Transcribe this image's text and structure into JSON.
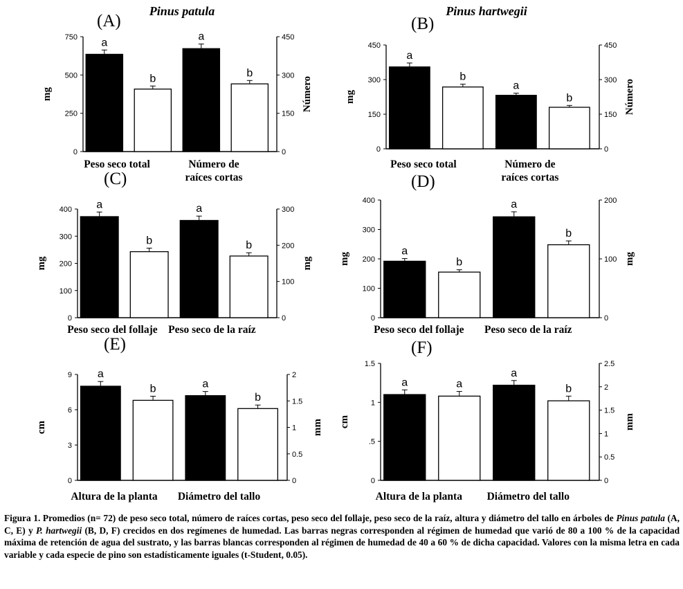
{
  "species_titles": [
    "Pinus patula",
    "Pinus hartwegii"
  ],
  "chart_data": [
    {
      "panel": "(A)",
      "type": "bar",
      "categories": [
        "Peso seco total",
        "Número de raíces cortas"
      ],
      "series": [
        {
          "name": "80 a 100 %",
          "values": [
            635,
            672
          ],
          "errors": [
            28,
            30
          ],
          "letters": [
            "a",
            "a"
          ]
        },
        {
          "name": "40 a 60 %",
          "values": [
            408,
            442
          ],
          "errors": [
            20,
            22
          ],
          "letters": [
            "b",
            "b"
          ]
        }
      ],
      "ylabel_left": "mg",
      "yticks_left": [
        "0",
        "250",
        "500",
        "750"
      ],
      "ylim_left": [
        0,
        750
      ],
      "ylabel_right": "Número",
      "yticks_right": [
        "0",
        "150",
        "300",
        "450"
      ],
      "ylim_right": [
        0,
        450
      ]
    },
    {
      "panel": "(B)",
      "type": "bar",
      "categories": [
        "Peso seco total",
        "Número de raíces cortas"
      ],
      "series": [
        {
          "name": "80 a 100 %",
          "values": [
            355,
            232
          ],
          "errors": [
            17,
            9
          ],
          "letters": [
            "a",
            "a"
          ]
        },
        {
          "name": "40 a 60 %",
          "values": [
            268,
            180
          ],
          "errors": [
            12,
            8
          ],
          "letters": [
            "b",
            "b"
          ]
        }
      ],
      "ylabel_left": "mg",
      "yticks_left": [
        "0",
        "150",
        "300",
        "450"
      ],
      "ylim_left": [
        0,
        450
      ],
      "ylabel_right": "Número",
      "yticks_right": [
        "0",
        "150",
        "300",
        "450"
      ],
      "ylim_right": [
        0,
        450
      ]
    },
    {
      "panel": "(C)",
      "type": "bar",
      "categories": [
        "Peso seco del follaje",
        "Peso seco de la raíz"
      ],
      "series": [
        {
          "name": "80 a 100 %",
          "values": [
            372,
            358
          ],
          "errors": [
            17,
            16
          ],
          "letters": [
            "a",
            "a"
          ]
        },
        {
          "name": "40 a 60 %",
          "values": [
            243,
            227
          ],
          "errors": [
            13,
            12
          ],
          "letters": [
            "b",
            "b"
          ]
        }
      ],
      "ylabel_left": "mg",
      "yticks_left": [
        "0",
        "100",
        "200",
        "300",
        "400"
      ],
      "ylim_left": [
        0,
        400
      ],
      "ylabel_right": "mg",
      "yticks_right": [
        "0",
        "100",
        "200",
        "300"
      ],
      "ylim_right": [
        0,
        300
      ]
    },
    {
      "panel": "(D)",
      "type": "bar",
      "categories": [
        "Peso seco del follaje",
        "Peso seco de la raíz"
      ],
      "series": [
        {
          "name": "80 a 100 %",
          "values": [
            192,
            343
          ],
          "errors": [
            9,
            17
          ],
          "letters": [
            "a",
            "a"
          ]
        },
        {
          "name": "40 a 60 %",
          "values": [
            155,
            248
          ],
          "errors": [
            8,
            13
          ],
          "letters": [
            "b",
            "b"
          ]
        }
      ],
      "ylabel_left": "mg",
      "yticks_left": [
        "0",
        "100",
        "200",
        "300",
        "400"
      ],
      "ylim_left": [
        0,
        400
      ],
      "ylabel_right": "mg",
      "yticks_right": [
        "0",
        "100",
        "200"
      ],
      "ylim_right": [
        0,
        200
      ]
    },
    {
      "panel": "(E)",
      "type": "bar",
      "categories": [
        "Altura de la planta",
        "Diámetro del tallo"
      ],
      "series": [
        {
          "name": "80 a 100 %",
          "values": [
            8.0,
            7.2
          ],
          "errors": [
            0.4,
            0.35
          ],
          "letters": [
            "a",
            "a"
          ]
        },
        {
          "name": "40 a 60 %",
          "values": [
            6.8,
            6.1
          ],
          "errors": [
            0.35,
            0.3
          ],
          "letters": [
            "b",
            "b"
          ]
        }
      ],
      "ylabel_left": "cm",
      "yticks_left": [
        "0",
        "3",
        "6",
        "9"
      ],
      "ylim_left": [
        0,
        9
      ],
      "ylabel_right": "mm",
      "yticks_right": [
        "0",
        "0.5",
        "1",
        "1.5",
        "2"
      ],
      "ylim_right": [
        0,
        2
      ]
    },
    {
      "panel": "(F)",
      "type": "bar",
      "categories": [
        "Altura de la planta",
        "Diámetro del tallo"
      ],
      "series": [
        {
          "name": "80 a 100 %",
          "values": [
            1.1,
            1.22
          ],
          "errors": [
            0.06,
            0.06
          ],
          "letters": [
            "a",
            "a"
          ]
        },
        {
          "name": "40 a 60 %",
          "values": [
            1.08,
            1.02
          ],
          "errors": [
            0.06,
            0.06
          ],
          "letters": [
            "a",
            "b"
          ]
        }
      ],
      "ylabel_left": "cm",
      "yticks_left": [
        "0",
        ".5",
        "1",
        "1.5"
      ],
      "ylim_left": [
        0,
        1.5
      ],
      "ylabel_right": "mm",
      "yticks_right": [
        "0",
        "0.5",
        "1",
        "1.5",
        "2",
        "2.5"
      ],
      "ylim_right": [
        0,
        2.5
      ]
    }
  ],
  "caption": {
    "p1": "Figura 1. Promedios (n= 72) de peso seco total, número de raíces cortas, peso seco del follaje, peso seco de la raíz, altura y diámetro del tallo en árboles de ",
    "sp1": "Pinus patula",
    "p2": " (A, C, E) y ",
    "sp2": "P. hartwegii",
    "p3": " (B, D, F) crecidos en dos regímenes de humedad. Las barras negras corresponden al régimen de humedad que varió de 80 a 100 % de la capacidad máxima de retención de agua del sustrato, y las barras blancas corresponden al régimen de humedad de 40 a 60 % de dicha capacidad. Valores con la misma letra en cada variable y cada especie de pino son estadísticamente iguales (t-Student, 0.05)."
  }
}
